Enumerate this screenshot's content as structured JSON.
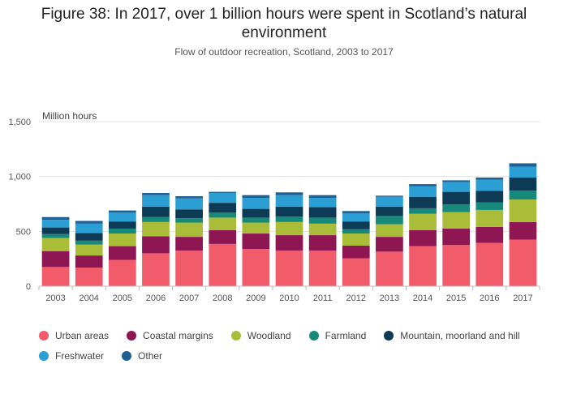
{
  "header": {
    "title": "Figure 38: In 2017, over 1 billion hours were spent in Scotland’s natural environment",
    "subtitle": "Flow of outdoor recreation, Scotland, 2003 to 2017"
  },
  "chart_data": {
    "type": "bar",
    "stacked": true,
    "title": "Figure 38: In 2017, over 1 billion hours were spent in Scotland’s natural environment",
    "subtitle": "Flow of outdoor recreation, Scotland, 2003 to 2017",
    "ylabel": "Million hours",
    "xlabel": "",
    "ylim": [
      0,
      1500
    ],
    "yticks": [
      0,
      500,
      1000,
      1500
    ],
    "ytick_labels": [
      "0",
      "500",
      "1,000",
      "1,500"
    ],
    "grid": true,
    "legend_position": "bottom",
    "categories": [
      "2003",
      "2004",
      "2005",
      "2006",
      "2007",
      "2008",
      "2009",
      "2010",
      "2011",
      "2012",
      "2013",
      "2014",
      "2015",
      "2016",
      "2017"
    ],
    "series": [
      {
        "name": "Urban areas",
        "color": "#f25c6a",
        "values": [
          175,
          170,
          240,
          300,
          325,
          385,
          340,
          325,
          325,
          255,
          315,
          365,
          375,
          395,
          425
        ]
      },
      {
        "name": "Coastal margins",
        "color": "#8e1653",
        "values": [
          145,
          110,
          125,
          155,
          125,
          125,
          140,
          140,
          140,
          115,
          135,
          145,
          150,
          145,
          160
        ]
      },
      {
        "name": "Woodland",
        "color": "#a9bd38",
        "values": [
          120,
          100,
          115,
          130,
          130,
          115,
          100,
          120,
          105,
          110,
          115,
          150,
          150,
          155,
          205
        ]
      },
      {
        "name": "Farmland",
        "color": "#17897a",
        "values": [
          35,
          35,
          45,
          45,
          40,
          45,
          45,
          50,
          55,
          40,
          75,
          50,
          70,
          70,
          80
        ]
      },
      {
        "name": "Mountain, moorland and hill",
        "color": "#0d3a54",
        "values": [
          60,
          70,
          65,
          95,
          80,
          90,
          80,
          90,
          95,
          70,
          85,
          105,
          115,
          105,
          120
        ]
      },
      {
        "name": "Freshwater",
        "color": "#2b9fd4",
        "values": [
          70,
          85,
          80,
          105,
          100,
          90,
          100,
          105,
          85,
          75,
          90,
          95,
          90,
          100,
          100
        ]
      },
      {
        "name": "Other",
        "color": "#1e5f94",
        "values": [
          25,
          25,
          20,
          20,
          20,
          10,
          25,
          25,
          25,
          20,
          10,
          20,
          15,
          20,
          30
        ]
      }
    ]
  }
}
